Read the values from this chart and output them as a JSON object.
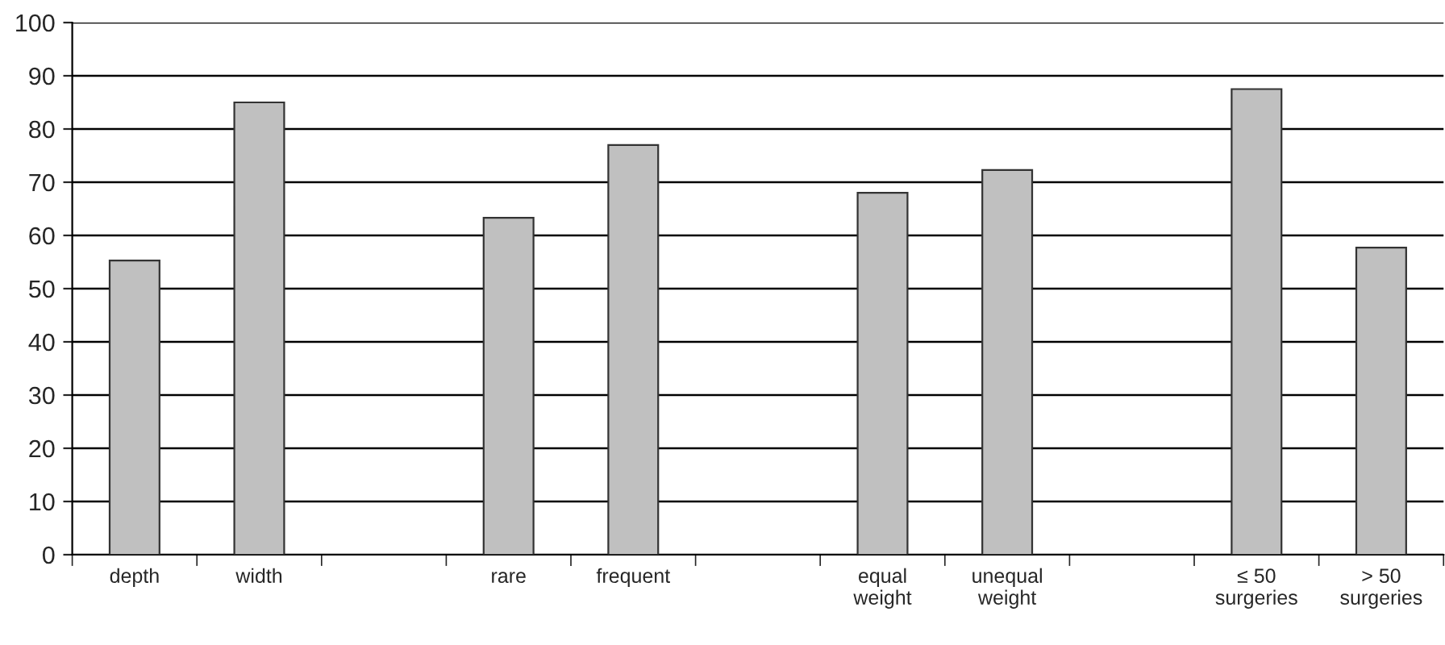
{
  "chart_data": {
    "type": "bar",
    "categories": [
      "depth",
      "width",
      null,
      "rare",
      "frequent",
      null,
      "equal\nweight",
      "unequal\nweight",
      null,
      "≤ 50\nsurgeries",
      "> 50\nsurgeries"
    ],
    "values": [
      55.3,
      85,
      null,
      63.3,
      77,
      null,
      68,
      72.3,
      null,
      87.5,
      57.7
    ],
    "color": "#c0c0c0",
    "ylim": [
      0,
      100
    ],
    "yticks": [
      0,
      10,
      20,
      30,
      40,
      50,
      60,
      70,
      80,
      90,
      100
    ],
    "grid": "y"
  }
}
